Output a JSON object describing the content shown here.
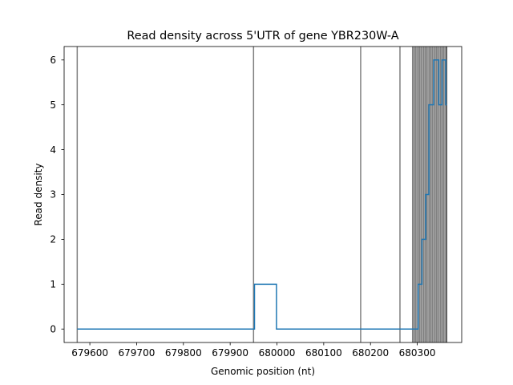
{
  "chart_data": {
    "type": "line",
    "title": "Read density across 5'UTR of gene YBR230W-A",
    "xlabel": "Genomic position (nt)",
    "ylabel": "Read density",
    "xlim": [
      679545,
      680395
    ],
    "ylim": [
      -0.3,
      6.3
    ],
    "x_ticks": [
      679600,
      679700,
      679800,
      679900,
      680000,
      680100,
      680200,
      680300
    ],
    "x_tick_labels": [
      "679600",
      "679700",
      "679800",
      "679900",
      "680000",
      "680100",
      "680200",
      "680300"
    ],
    "y_ticks": [
      0,
      1,
      2,
      3,
      4,
      5,
      6
    ],
    "y_tick_labels": [
      "0",
      "1",
      "2",
      "3",
      "4",
      "5",
      "6"
    ],
    "grid": false,
    "legend": "none",
    "series": [
      {
        "style": "step",
        "color": "#1f77b4",
        "x": [
          679573,
          679950,
          679952,
          679997,
          679999,
          680297,
          680300,
          680302,
          680305,
          680308,
          680310,
          680313,
          680315,
          680318,
          680320,
          680323,
          680325,
          680328,
          680330,
          680333,
          680335,
          680338,
          680340,
          680343,
          680346,
          680348,
          680351,
          680353,
          680356,
          680358,
          680361,
          680363
        ],
        "y": [
          0,
          0,
          1,
          1,
          0,
          0,
          0,
          1,
          1,
          1,
          2,
          2,
          2,
          3,
          3,
          3,
          5,
          5,
          5,
          5,
          6,
          6,
          6,
          6,
          5,
          5,
          5,
          6,
          6,
          6,
          5,
          5
        ]
      }
    ],
    "vlines": {
      "color": "#000000",
      "alpha": 0.5,
      "x": [
        679573,
        679950,
        680179,
        680263,
        680290,
        680293,
        680296,
        680299,
        680302,
        680305,
        680308,
        680311,
        680314,
        680317,
        680320,
        680323,
        680326,
        680329,
        680332,
        680335,
        680338,
        680341,
        680344,
        680347,
        680350,
        680353,
        680356,
        680359,
        680362,
        680363
      ]
    }
  }
}
